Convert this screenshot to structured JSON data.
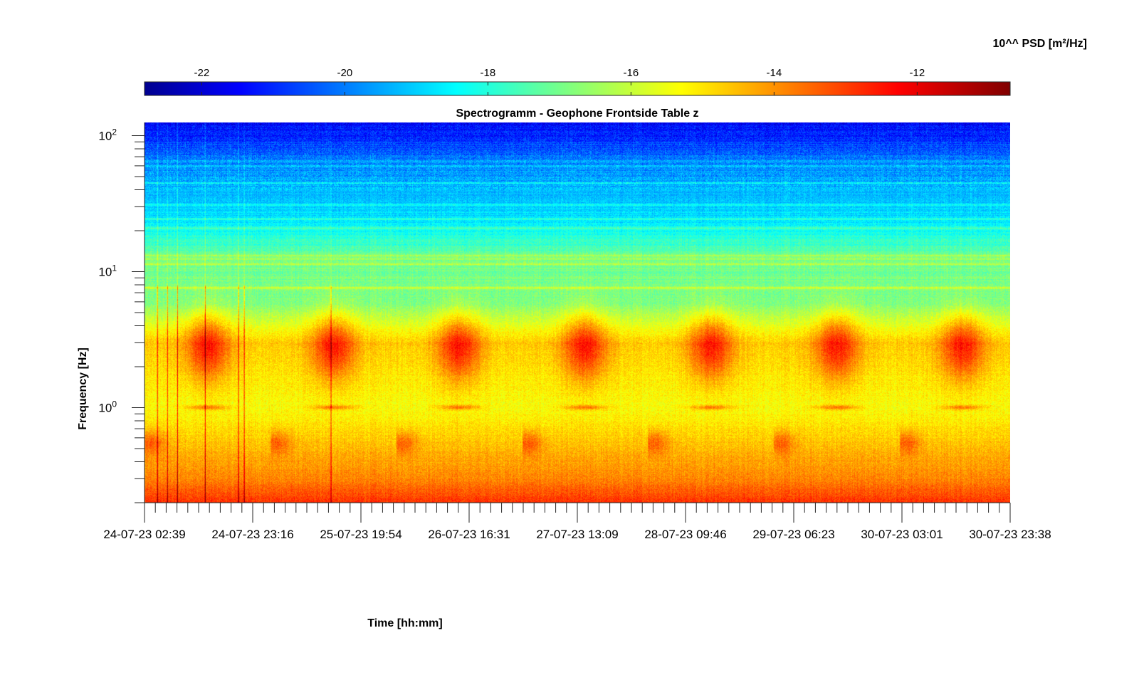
{
  "chart_data": {
    "type": "heatmap",
    "title": "Spectrogramm - Geophone Frontside Table z",
    "xlabel": "Time [hh:mm]",
    "ylabel": "Frequency [Hz]",
    "x_ticks": [
      "24-07-23 02:39",
      "24-07-23 23:16",
      "25-07-23 19:54",
      "26-07-23 16:31",
      "27-07-23 13:09",
      "28-07-23 09:46",
      "29-07-23 06:23",
      "30-07-23 03:01",
      "30-07-23 23:38"
    ],
    "y_scale": "log",
    "y_ticks": [
      {
        "base": "10",
        "exp": "0",
        "value": 1
      },
      {
        "base": "10",
        "exp": "1",
        "value": 10
      },
      {
        "base": "10",
        "exp": "2",
        "value": 100
      }
    ],
    "ylim": [
      0.2,
      125
    ],
    "colorbar": {
      "label": "10^^ PSD [m²/Hz]",
      "ticks": [
        "-22",
        "-20",
        "-18",
        "-16",
        "-14",
        "-12"
      ],
      "tick_values": [
        -22,
        -20,
        -18,
        -16,
        -14,
        -12
      ],
      "range": [
        -22.8,
        -10.7
      ],
      "colormap": "jet",
      "location": "top"
    },
    "profile": {
      "description_levels_log10_psd_by_frequency": [
        {
          "f": 0.2,
          "psd": -12.8
        },
        {
          "f": 0.3,
          "psd": -13.8
        },
        {
          "f": 0.5,
          "psd": -14.4
        },
        {
          "f": 1.0,
          "psd": -15.3
        },
        {
          "f": 3.0,
          "psd": -14.6
        },
        {
          "f": 6.0,
          "psd": -16.8
        },
        {
          "f": 12.0,
          "psd": -16.9
        },
        {
          "f": 25.0,
          "psd": -18.6
        },
        {
          "f": 60.0,
          "psd": -19.6
        },
        {
          "f": 125.0,
          "psd": -21.3
        }
      ]
    }
  }
}
